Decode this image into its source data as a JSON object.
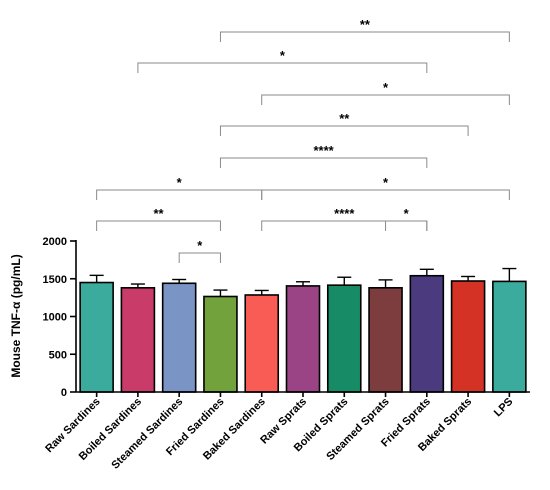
{
  "chart_data": {
    "type": "bar",
    "title": "",
    "xlabel": "",
    "ylabel": "Mouse TNF-α (pg/mL)",
    "ylim": [
      0,
      2000
    ],
    "yticks": [
      "0",
      "500",
      "1000",
      "1500",
      "2000"
    ],
    "ytick_values": [
      0,
      500,
      1000,
      1500,
      2000
    ],
    "grid": false,
    "legend": "none",
    "categories": [
      "Raw Sardines",
      "Boiled Sardines",
      "Steamed Sardines",
      "Fried Sardines",
      "Baked Sardines",
      "Raw Sprats",
      "Boiled Sprats",
      "Steamed Sprats",
      "Fried Sprats",
      "Baked Sprats",
      "LPS"
    ],
    "values": [
      1450,
      1380,
      1440,
      1265,
      1285,
      1405,
      1415,
      1380,
      1540,
      1470,
      1465
    ],
    "errors": [
      95,
      50,
      50,
      85,
      60,
      55,
      105,
      105,
      85,
      60,
      170
    ],
    "colors": [
      "#3aab9c",
      "#c93c6a",
      "#7a94c6",
      "#72a23b",
      "#f85c55",
      "#9a4485",
      "#168b66",
      "#7d3c3e",
      "#4b3a7e",
      "#d33225",
      "#3aab9c"
    ],
    "significance": [
      {
        "from": 2,
        "to": 3,
        "label": "*"
      },
      {
        "from": 7,
        "to": 8,
        "label": "*"
      },
      {
        "from": 0,
        "to": 3,
        "label": "**"
      },
      {
        "from": 4,
        "to": 8,
        "label": "****"
      },
      {
        "from": 0,
        "to": 4,
        "label": "*"
      },
      {
        "from": 4,
        "to": 10,
        "label": "*"
      },
      {
        "from": 3,
        "to": 8,
        "label": "****"
      },
      {
        "from": 3,
        "to": 9,
        "label": "**"
      },
      {
        "from": 4,
        "to": 10,
        "label": "*"
      },
      {
        "from": 1,
        "to": 8,
        "label": "*"
      },
      {
        "from": 3,
        "to": 10,
        "label": "**"
      }
    ]
  }
}
